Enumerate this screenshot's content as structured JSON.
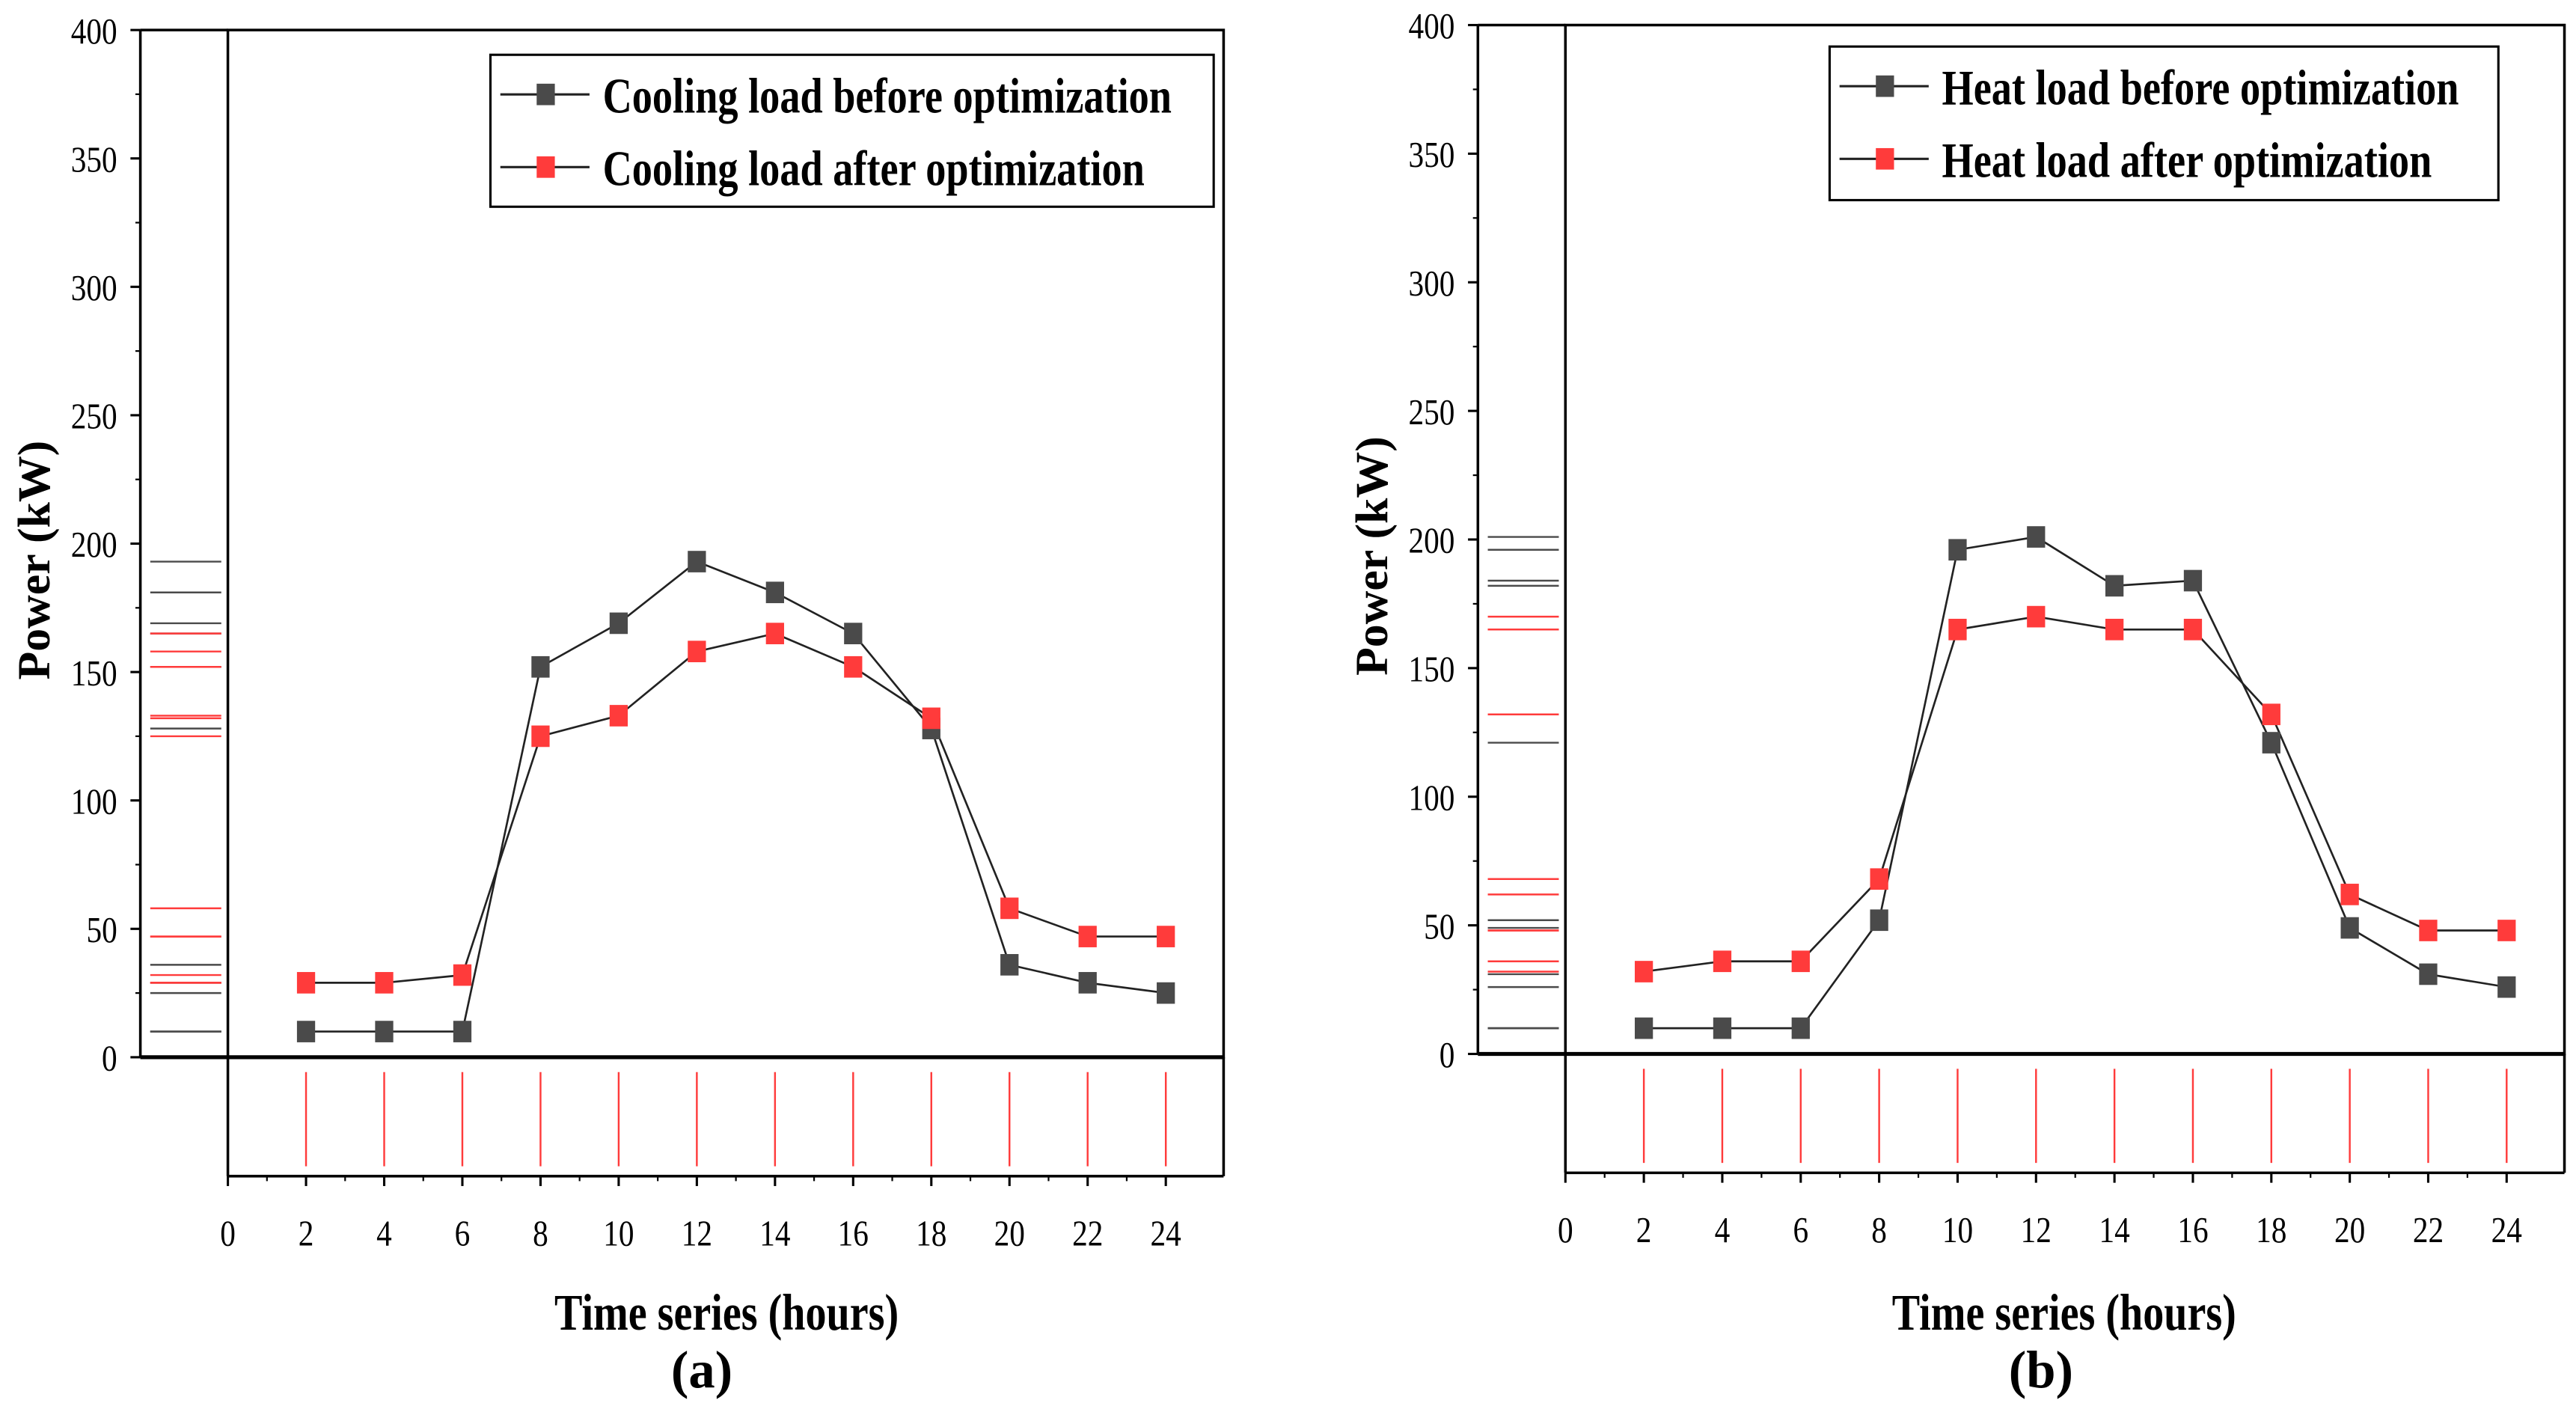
{
  "chart_data": [
    {
      "type": "line",
      "panel_label": "(a)",
      "xlabel": "Time series (hours)",
      "ylabel": "Power (kW)",
      "xlim": [
        0,
        24
      ],
      "ylim": [
        0,
        400
      ],
      "xticks": [
        0,
        2,
        4,
        6,
        8,
        10,
        12,
        14,
        16,
        18,
        20,
        22,
        24
      ],
      "yticks": [
        0,
        50,
        100,
        150,
        200,
        250,
        300,
        350,
        400
      ],
      "legend_position": "top-right",
      "x": [
        2,
        4,
        6,
        8,
        10,
        12,
        14,
        16,
        18,
        20,
        22,
        24
      ],
      "series": [
        {
          "name": "Cooling load before optimization",
          "color": "#4a4a4a",
          "values": [
            10,
            10,
            10,
            152,
            169,
            193,
            181,
            165,
            128,
            36,
            29,
            25
          ]
        },
        {
          "name": "Cooling load after optimization",
          "color": "#ff3b3b",
          "values": [
            29,
            29,
            32,
            125,
            133,
            158,
            165,
            152,
            132,
            58,
            47,
            47
          ]
        }
      ]
    },
    {
      "type": "line",
      "panel_label": "(b)",
      "xlabel": "Time series (hours)",
      "ylabel": "Power (kW)",
      "xlim": [
        0,
        24
      ],
      "ylim": [
        0,
        400
      ],
      "xticks": [
        0,
        2,
        4,
        6,
        8,
        10,
        12,
        14,
        16,
        18,
        20,
        22,
        24
      ],
      "yticks": [
        0,
        50,
        100,
        150,
        200,
        250,
        300,
        350,
        400
      ],
      "legend_position": "top-right",
      "x": [
        2,
        4,
        6,
        8,
        10,
        12,
        14,
        16,
        18,
        20,
        22,
        24
      ],
      "series": [
        {
          "name": "Heat load before optimization",
          "color": "#4a4a4a",
          "values": [
            10,
            10,
            10,
            52,
            196,
            201,
            182,
            184,
            121,
            49,
            31,
            26
          ]
        },
        {
          "name": "Heat load after optimization",
          "color": "#ff3b3b",
          "values": [
            32,
            36,
            36,
            68,
            165,
            170,
            165,
            165,
            132,
            62,
            48,
            48
          ]
        }
      ]
    }
  ]
}
